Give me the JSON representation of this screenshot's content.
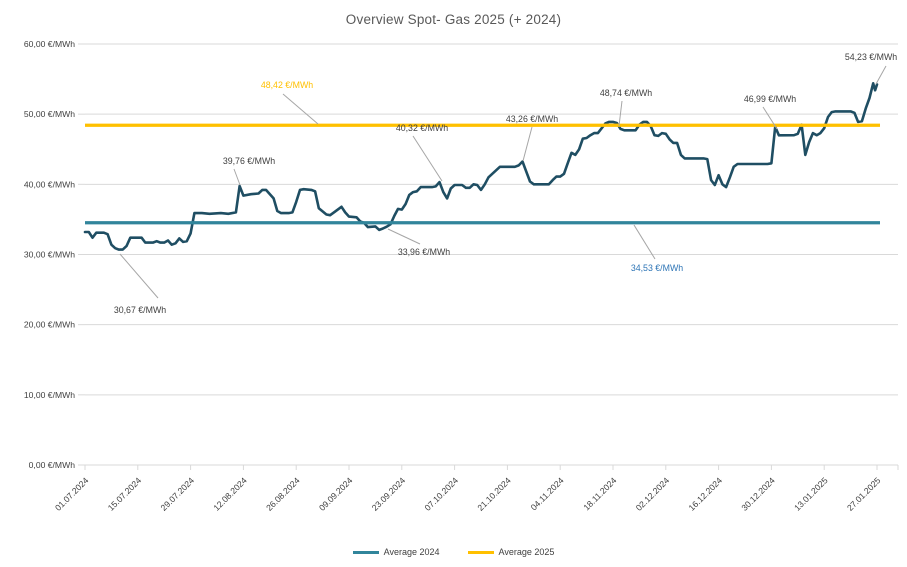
{
  "chart_data": {
    "type": "line",
    "title": "Overview Spot- Gas 2025 (+ 2024)",
    "colors": {
      "series": "#1f4e63",
      "avg2024": "#31859b",
      "avg2025": "#ffc000",
      "grid": "#d9d9d9",
      "axis_text": "#404040",
      "label_default": "#404040",
      "label_blue": "#2e75b6",
      "leader": "#a6a6a6",
      "title": "#595959"
    },
    "y_axis": {
      "min": 0,
      "max": 60,
      "ticks": [
        {
          "v": 0,
          "label": "0,00 €/MWh"
        },
        {
          "v": 10,
          "label": "10,00 €/MWh"
        },
        {
          "v": 20,
          "label": "20,00 €/MWh"
        },
        {
          "v": 30,
          "label": "30,00 €/MWh"
        },
        {
          "v": 40,
          "label": "40,00 €/MWh"
        },
        {
          "v": 50,
          "label": "50,00 €/MWh"
        },
        {
          "v": 60,
          "label": "60,00 €/MWh"
        }
      ]
    },
    "x_axis": {
      "tick_interval_days": 14,
      "categories": [
        "01.07.2024",
        "15.07.2024",
        "29.07.2024",
        "12.08.2024",
        "26.08.2024",
        "09.09.2024",
        "23.09.2024",
        "07.10.2024",
        "21.10.2024",
        "04.11.2024",
        "18.11.2024",
        "02.12.2024",
        "16.12.2024",
        "30.12.2024",
        "13.01.2025",
        "27.01.2025"
      ]
    },
    "series": {
      "unit": "€/MWh",
      "x_unit": "days_since_2024-07-01",
      "points": [
        [
          0,
          33.2
        ],
        [
          1,
          33.2
        ],
        [
          2,
          32.4
        ],
        [
          3,
          33.1
        ],
        [
          5,
          33.1
        ],
        [
          6,
          32.9
        ],
        [
          7,
          31.4
        ],
        [
          8,
          30.9
        ],
        [
          9,
          30.7
        ],
        [
          10,
          30.7
        ],
        [
          11,
          31.2
        ],
        [
          12,
          32.4
        ],
        [
          15,
          32.4
        ],
        [
          16,
          31.7
        ],
        [
          18,
          31.7
        ],
        [
          19,
          31.9
        ],
        [
          20,
          31.7
        ],
        [
          21,
          31.7
        ],
        [
          22,
          32.0
        ],
        [
          23,
          31.4
        ],
        [
          24,
          31.6
        ],
        [
          25,
          32.3
        ],
        [
          26,
          31.8
        ],
        [
          27,
          31.9
        ],
        [
          28,
          33.0
        ],
        [
          29,
          35.9
        ],
        [
          31,
          35.9
        ],
        [
          33,
          35.8
        ],
        [
          36,
          35.9
        ],
        [
          38,
          35.8
        ],
        [
          40,
          36.0
        ],
        [
          41,
          39.76
        ],
        [
          42,
          38.4
        ],
        [
          44,
          38.6
        ],
        [
          46,
          38.7
        ],
        [
          47,
          39.2
        ],
        [
          48,
          39.2
        ],
        [
          50,
          38.0
        ],
        [
          51,
          36.2
        ],
        [
          52,
          35.9
        ],
        [
          54,
          35.9
        ],
        [
          55,
          36.0
        ],
        [
          56,
          37.5
        ],
        [
          57,
          39.2
        ],
        [
          58,
          39.3
        ],
        [
          60,
          39.2
        ],
        [
          61,
          39.0
        ],
        [
          62,
          36.6
        ],
        [
          64,
          35.7
        ],
        [
          65,
          35.6
        ],
        [
          66,
          36.0
        ],
        [
          68,
          36.8
        ],
        [
          69,
          36.0
        ],
        [
          70,
          35.4
        ],
        [
          72,
          35.3
        ],
        [
          73,
          34.7
        ],
        [
          74,
          34.5
        ],
        [
          75,
          33.9
        ],
        [
          77,
          34.0
        ],
        [
          78,
          33.5
        ],
        [
          79,
          33.7
        ],
        [
          80,
          33.96
        ],
        [
          81,
          34.3
        ],
        [
          82,
          35.5
        ],
        [
          83,
          36.5
        ],
        [
          84,
          36.4
        ],
        [
          85,
          37.2
        ],
        [
          86,
          38.5
        ],
        [
          87,
          38.9
        ],
        [
          88,
          39.0
        ],
        [
          89,
          39.6
        ],
        [
          92,
          39.6
        ],
        [
          93,
          39.7
        ],
        [
          94,
          40.32
        ],
        [
          95,
          38.9
        ],
        [
          96,
          38.0
        ],
        [
          97,
          39.4
        ],
        [
          98,
          39.9
        ],
        [
          100,
          39.9
        ],
        [
          101,
          39.5
        ],
        [
          102,
          39.5
        ],
        [
          103,
          40.0
        ],
        [
          104,
          39.9
        ],
        [
          105,
          39.2
        ],
        [
          106,
          40.0
        ],
        [
          107,
          41.0
        ],
        [
          109,
          42.0
        ],
        [
          110,
          42.5
        ],
        [
          114,
          42.5
        ],
        [
          115,
          42.7
        ],
        [
          116,
          43.26
        ],
        [
          117,
          41.8
        ],
        [
          118,
          40.4
        ],
        [
          119,
          40.0
        ],
        [
          123,
          40.0
        ],
        [
          124,
          40.6
        ],
        [
          125,
          41.1
        ],
        [
          126,
          41.1
        ],
        [
          127,
          41.5
        ],
        [
          128,
          43.0
        ],
        [
          129,
          44.5
        ],
        [
          130,
          44.2
        ],
        [
          131,
          45.0
        ],
        [
          132,
          46.5
        ],
        [
          133,
          46.6
        ],
        [
          134,
          47.0
        ],
        [
          135,
          47.3
        ],
        [
          136,
          47.3
        ],
        [
          137,
          48.0
        ],
        [
          138,
          48.7
        ],
        [
          139,
          48.9
        ],
        [
          140,
          48.9
        ],
        [
          141,
          48.74
        ],
        [
          142,
          47.9
        ],
        [
          143,
          47.7
        ],
        [
          146,
          47.7
        ],
        [
          147,
          48.5
        ],
        [
          148,
          48.9
        ],
        [
          149,
          48.9
        ],
        [
          150,
          48.3
        ],
        [
          151,
          47.0
        ],
        [
          152,
          46.9
        ],
        [
          153,
          47.3
        ],
        [
          154,
          47.2
        ],
        [
          155,
          46.4
        ],
        [
          156,
          45.9
        ],
        [
          157,
          45.9
        ],
        [
          158,
          44.2
        ],
        [
          159,
          43.7
        ],
        [
          164,
          43.7
        ],
        [
          165,
          43.6
        ],
        [
          166,
          40.6
        ],
        [
          167,
          39.9
        ],
        [
          168,
          41.3
        ],
        [
          169,
          40.0
        ],
        [
          170,
          39.6
        ],
        [
          171,
          41.0
        ],
        [
          172,
          42.5
        ],
        [
          173,
          42.9
        ],
        [
          181,
          42.9
        ],
        [
          182,
          43.0
        ],
        [
          183,
          48.2
        ],
        [
          184,
          46.99
        ],
        [
          188,
          47.0
        ],
        [
          189,
          47.2
        ],
        [
          190,
          48.5
        ],
        [
          191,
          44.2
        ],
        [
          192,
          46.0
        ],
        [
          193,
          47.3
        ],
        [
          194,
          47.0
        ],
        [
          195,
          47.3
        ],
        [
          196,
          48.0
        ],
        [
          197,
          49.6
        ],
        [
          198,
          50.3
        ],
        [
          199,
          50.4
        ],
        [
          203,
          50.4
        ],
        [
          204,
          50.2
        ],
        [
          205,
          48.9
        ],
        [
          206,
          49.0
        ],
        [
          207,
          50.8
        ],
        [
          208,
          52.3
        ],
        [
          209,
          54.4
        ],
        [
          209.5,
          53.4
        ],
        [
          210,
          54.23
        ]
      ]
    },
    "averages": [
      {
        "name": "Average 2024",
        "value": 34.53,
        "color_key": "avg2024"
      },
      {
        "name": "Average 2025",
        "value": 48.42,
        "color_key": "avg2025"
      }
    ],
    "annotations": [
      {
        "text": "30,67 €/MWh",
        "kind": "default",
        "point": {
          "day": 9.5,
          "value": 30.67
        },
        "label": [
          140,
          310
        ],
        "leader": [
          120,
          254,
          158,
          298
        ]
      },
      {
        "text": "39,76 €/MWh",
        "kind": "default",
        "point": {
          "day": 41,
          "value": 39.76
        },
        "label": [
          249,
          161
        ],
        "leader": [
          240,
          185,
          234,
          169
        ]
      },
      {
        "text": "48,42 €/MWh",
        "kind": "gold",
        "point": null,
        "label": [
          287,
          85
        ],
        "leader": [
          318,
          124,
          283,
          94
        ]
      },
      {
        "text": "33,96 €/MWh",
        "kind": "default",
        "point": {
          "day": 80,
          "value": 33.96
        },
        "label": [
          424,
          252
        ],
        "leader": [
          388,
          229,
          420,
          244
        ]
      },
      {
        "text": "40,32 €/MWh",
        "kind": "default",
        "point": {
          "day": 94,
          "value": 40.32
        },
        "label": [
          422,
          128
        ],
        "leader": [
          442,
          181,
          413,
          136
        ]
      },
      {
        "text": "43,26 €/MWh",
        "kind": "default",
        "point": {
          "day": 116,
          "value": 43.26
        },
        "label": [
          532,
          119
        ],
        "leader": [
          523,
          161,
          532,
          127
        ]
      },
      {
        "text": "48,74 €/MWh",
        "kind": "default",
        "point": {
          "day": 141.5,
          "value": 48.74
        },
        "label": [
          626,
          93
        ],
        "leader": [
          619,
          126,
          622,
          101
        ]
      },
      {
        "text": "46,99 €/MWh",
        "kind": "default",
        "point": {
          "day": 183.5,
          "value": 46.99
        },
        "label": [
          770,
          99
        ],
        "leader": [
          777,
          129,
          763,
          107
        ]
      },
      {
        "text": "54,23 €/MWh",
        "kind": "default",
        "point": {
          "day": 210,
          "value": 54.23
        },
        "label": [
          871,
          57
        ],
        "leader": [
          876,
          84,
          886,
          66
        ]
      },
      {
        "text": "34,53 €/MWh",
        "kind": "blue",
        "point": null,
        "label": [
          657,
          268
        ],
        "leader": [
          634,
          225,
          655,
          259
        ]
      }
    ],
    "legend": {
      "position": "bottom-center"
    },
    "grid": true
  }
}
